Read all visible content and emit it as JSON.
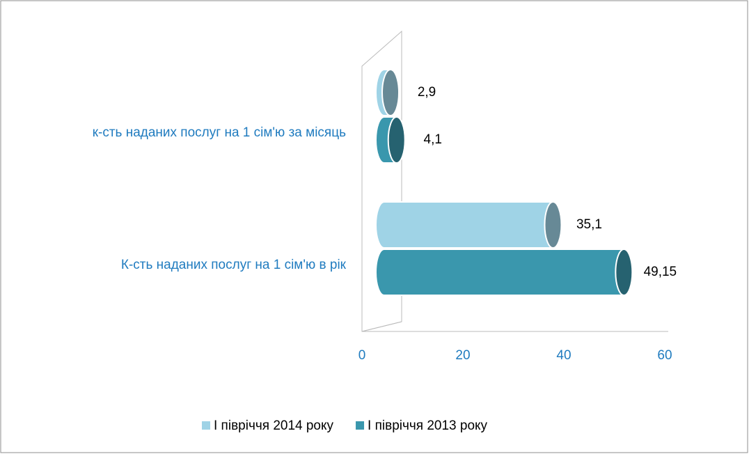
{
  "chart_data": {
    "type": "bar3d_horizontal",
    "categories": [
      "к-сть наданих послуг на 1 сім'ю за місяць",
      "К-сть наданих послуг на 1 сім'ю в рік"
    ],
    "series": [
      {
        "name": "І півріччя 2014 року",
        "color": "#9fd3e6",
        "values": [
          2.9,
          35.1
        ],
        "value_labels": [
          "2,9",
          "35,1"
        ]
      },
      {
        "name": "І півріччя 2013 року",
        "color": "#3a97ad",
        "values": [
          4.1,
          49.15
        ],
        "value_labels": [
          "4,1",
          "49,15"
        ]
      }
    ],
    "xlim": [
      0,
      60
    ],
    "xticks": [
      0,
      20,
      40,
      60
    ],
    "legend": "bottom"
  }
}
